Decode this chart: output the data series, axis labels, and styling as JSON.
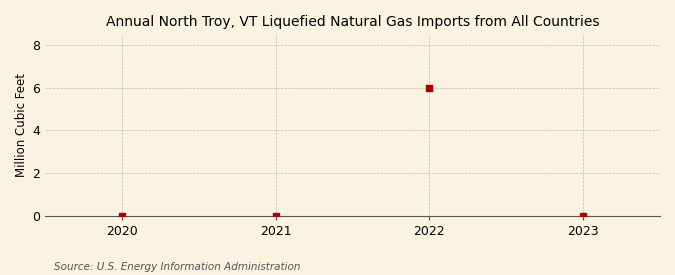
{
  "title": "Annual North Troy, VT Liquefied Natural Gas Imports from All Countries",
  "ylabel": "Million Cubic Feet",
  "source": "Source: U.S. Energy Information Administration",
  "x": [
    2020,
    2021,
    2022,
    2023
  ],
  "y": [
    0,
    0,
    6,
    0
  ],
  "xlim": [
    2019.5,
    2023.5
  ],
  "ylim": [
    0,
    8.5
  ],
  "yticks": [
    0,
    2,
    4,
    6,
    8
  ],
  "xticks": [
    2020,
    2021,
    2022,
    2023
  ],
  "marker_color": "#aa0000",
  "marker": "s",
  "marker_size": 4,
  "grid_color": "#bbbbbb",
  "background_color": "#FAF3E0",
  "title_fontsize": 10,
  "axis_fontsize": 8.5,
  "tick_fontsize": 9,
  "source_fontsize": 7.5
}
